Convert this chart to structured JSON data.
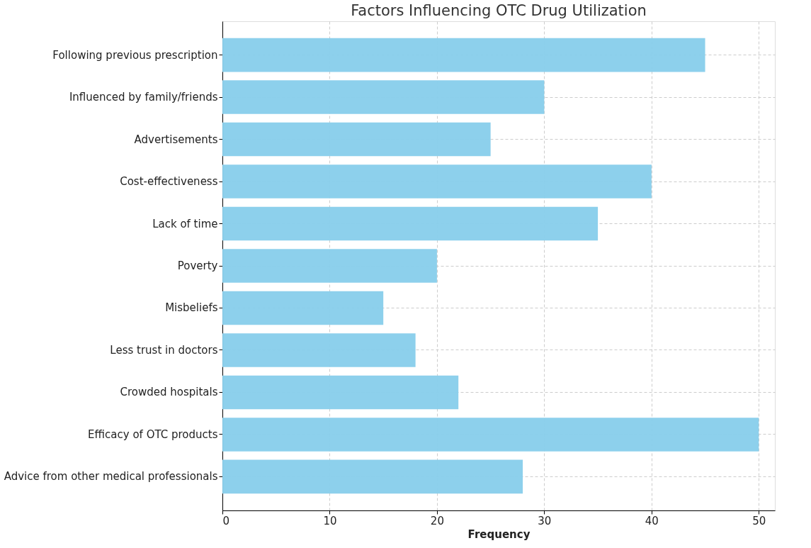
{
  "chart_data": {
    "type": "bar",
    "orientation": "horizontal",
    "title": "Factors Influencing OTC Drug Utilization",
    "xlabel": "Frequency",
    "categories": [
      "Following previous prescription",
      "Influenced by family/friends",
      "Advertisements",
      "Cost-effectiveness",
      "Lack of time",
      "Poverty",
      "Misbeliefs",
      "Less trust in doctors",
      "Crowded hospitals",
      "Efficacy of OTC products",
      "Advice from other medical professionals"
    ],
    "values": [
      45,
      30,
      25,
      40,
      35,
      20,
      15,
      18,
      22,
      50,
      28
    ],
    "color": "#87ceeb",
    "xlim": [
      0,
      51.5
    ],
    "xticks": [
      0,
      10,
      20,
      30,
      40,
      50
    ],
    "grid": true,
    "line_style": "dashed"
  }
}
